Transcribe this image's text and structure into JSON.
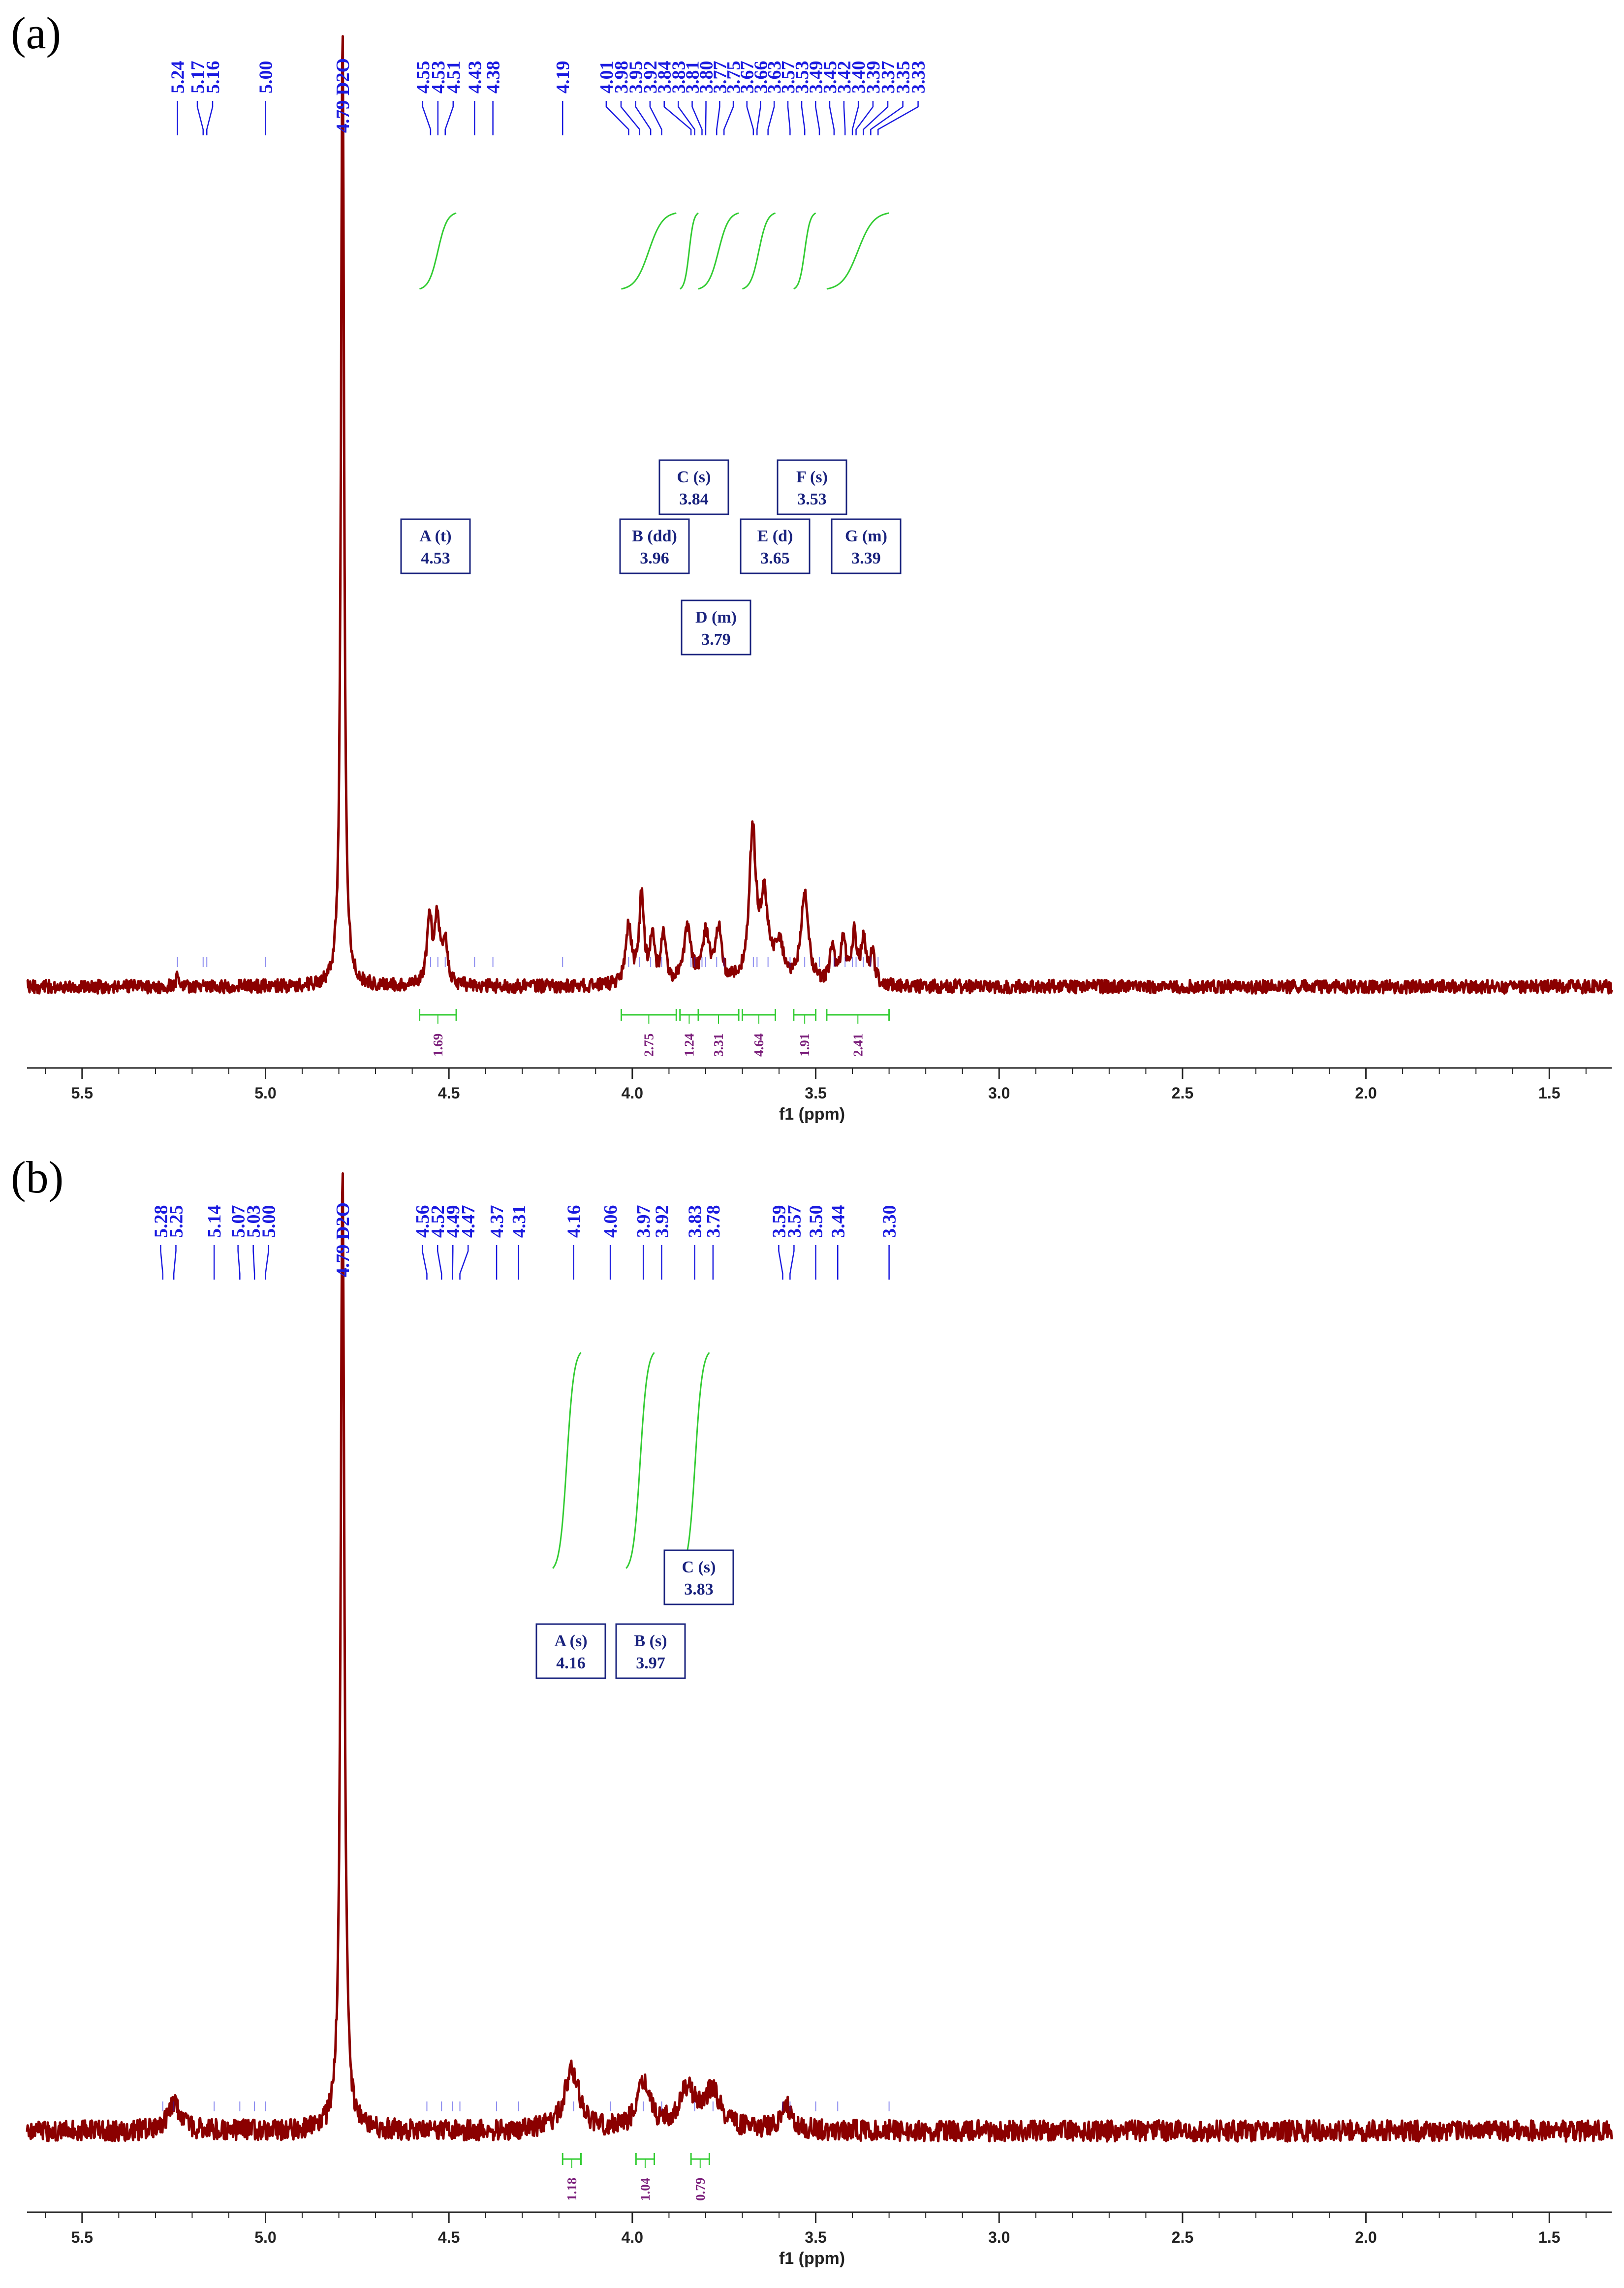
{
  "colors": {
    "spectrum": "#8b0000",
    "peak_labels": "#1a1ae0",
    "integral_curve": "#33cc33",
    "integral_values": "#7b1f7b",
    "assignment_box": "#1a237e",
    "axis": "#222222"
  },
  "chart_data": [
    {
      "type": "line",
      "panel_label": "(a)",
      "xlabel": "f1 (ppm)",
      "xlim": [
        5.65,
        1.33
      ],
      "x_reversed": true,
      "x_ticks": [
        "5.5",
        "5.0",
        "4.5",
        "4.0",
        "3.5",
        "3.0",
        "2.5",
        "2.0",
        "1.5"
      ],
      "solvent_label": "4.79 D2O",
      "peak_labels": [
        "5.24",
        "5.17",
        "5.16",
        "5.00",
        "4.55",
        "4.53",
        "4.51",
        "4.43",
        "4.38",
        "4.19",
        "4.01",
        "3.98",
        "3.95",
        "3.92",
        "3.84",
        "3.83",
        "3.81",
        "3.80",
        "3.77",
        "3.75",
        "3.67",
        "3.66",
        "3.63",
        "3.57",
        "3.53",
        "3.49",
        "3.45",
        "3.42",
        "3.40",
        "3.39",
        "3.37",
        "3.35",
        "3.33"
      ],
      "assignments": [
        {
          "label": "A (t)",
          "shift": "4.53"
        },
        {
          "label": "B (dd)",
          "shift": "3.96"
        },
        {
          "label": "C (s)",
          "shift": "3.84"
        },
        {
          "label": "D (m)",
          "shift": "3.79"
        },
        {
          "label": "E (d)",
          "shift": "3.65"
        },
        {
          "label": "F (s)",
          "shift": "3.53"
        },
        {
          "label": "G (m)",
          "shift": "3.39"
        }
      ],
      "integrals": [
        {
          "from": 4.58,
          "to": 4.48,
          "value": "1.69"
        },
        {
          "from": 4.03,
          "to": 3.88,
          "value": "2.75"
        },
        {
          "from": 3.87,
          "to": 3.82,
          "value": "1.24"
        },
        {
          "from": 3.82,
          "to": 3.71,
          "value": "3.31"
        },
        {
          "from": 3.7,
          "to": 3.61,
          "value": "4.64"
        },
        {
          "from": 3.56,
          "to": 3.5,
          "value": "1.91"
        },
        {
          "from": 3.47,
          "to": 3.3,
          "value": "2.41"
        }
      ],
      "peaks": [
        {
          "shift": 4.79,
          "height": 1.0,
          "width": 0.005
        },
        {
          "shift": 5.24,
          "height": 0.012,
          "width": 0.004
        },
        {
          "shift": 4.553,
          "height": 0.068,
          "width": 0.008
        },
        {
          "shift": 4.532,
          "height": 0.07,
          "width": 0.008
        },
        {
          "shift": 4.511,
          "height": 0.045,
          "width": 0.008
        },
        {
          "shift": 4.01,
          "height": 0.06,
          "width": 0.009
        },
        {
          "shift": 3.975,
          "height": 0.09,
          "width": 0.008
        },
        {
          "shift": 3.945,
          "height": 0.05,
          "width": 0.007
        },
        {
          "shift": 3.915,
          "height": 0.05,
          "width": 0.008
        },
        {
          "shift": 3.85,
          "height": 0.055,
          "width": 0.012
        },
        {
          "shift": 3.8,
          "height": 0.05,
          "width": 0.012
        },
        {
          "shift": 3.765,
          "height": 0.055,
          "width": 0.01
        },
        {
          "shift": 3.672,
          "height": 0.155,
          "width": 0.011
        },
        {
          "shift": 3.64,
          "height": 0.085,
          "width": 0.012
        },
        {
          "shift": 3.6,
          "height": 0.04,
          "width": 0.014
        },
        {
          "shift": 3.53,
          "height": 0.095,
          "width": 0.012
        },
        {
          "shift": 3.455,
          "height": 0.035,
          "width": 0.008
        },
        {
          "shift": 3.425,
          "height": 0.045,
          "width": 0.008
        },
        {
          "shift": 3.395,
          "height": 0.05,
          "width": 0.008
        },
        {
          "shift": 3.37,
          "height": 0.045,
          "width": 0.008
        },
        {
          "shift": 3.345,
          "height": 0.03,
          "width": 0.008
        }
      ]
    },
    {
      "type": "line",
      "panel_label": "(b)",
      "xlabel": "f1 (ppm)",
      "xlim": [
        5.65,
        1.33
      ],
      "x_reversed": true,
      "x_ticks": [
        "5.5",
        "5.0",
        "4.5",
        "4.0",
        "3.5",
        "3.0",
        "2.5",
        "2.0",
        "1.5"
      ],
      "solvent_label": "4.79 D2O",
      "peak_labels": [
        "5.28",
        "5.25",
        "5.14",
        "5.07",
        "5.03",
        "5.00",
        "4.56",
        "4.52",
        "4.49",
        "4.47",
        "4.37",
        "4.31",
        "4.16",
        "4.06",
        "3.97",
        "3.92",
        "3.83",
        "3.78",
        "3.59",
        "3.57",
        "3.50",
        "3.44",
        "3.30"
      ],
      "assignments": [
        {
          "label": "A (s)",
          "shift": "4.16"
        },
        {
          "label": "B (s)",
          "shift": "3.97"
        },
        {
          "label": "C (s)",
          "shift": "3.83"
        }
      ],
      "integrals": [
        {
          "from": 4.19,
          "to": 4.14,
          "value": "1.18"
        },
        {
          "from": 3.99,
          "to": 3.94,
          "value": "1.04"
        },
        {
          "from": 3.84,
          "to": 3.79,
          "value": "0.79"
        }
      ],
      "peaks": [
        {
          "shift": 4.79,
          "height": 1.0,
          "width": 0.006
        },
        {
          "shift": 5.25,
          "height": 0.03,
          "width": 0.02
        },
        {
          "shift": 4.165,
          "height": 0.062,
          "width": 0.025
        },
        {
          "shift": 3.97,
          "height": 0.05,
          "width": 0.02
        },
        {
          "shift": 3.85,
          "height": 0.04,
          "width": 0.03
        },
        {
          "shift": 3.78,
          "height": 0.038,
          "width": 0.025
        },
        {
          "shift": 3.58,
          "height": 0.025,
          "width": 0.02
        }
      ]
    }
  ]
}
